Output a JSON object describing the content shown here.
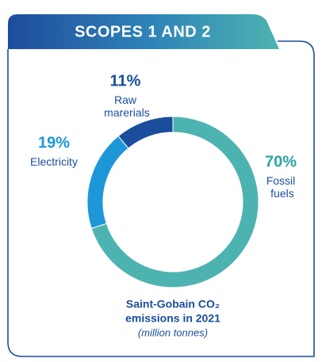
{
  "chart_data": {
    "type": "pie",
    "title": "SCOPES 1 AND 2",
    "categories": [
      "Fossil fuels",
      "Electricity",
      "Raw marerials"
    ],
    "values": [
      70,
      19,
      11
    ],
    "value_labels": [
      "70%",
      "19%",
      "11%"
    ],
    "colors": [
      "#4db3b0",
      "#1e97d8",
      "#1a4e9c"
    ],
    "caption": [
      "Saint-Gobain CO₂",
      "emissions in 2021"
    ],
    "subtitle": "(million tonnes)"
  }
}
